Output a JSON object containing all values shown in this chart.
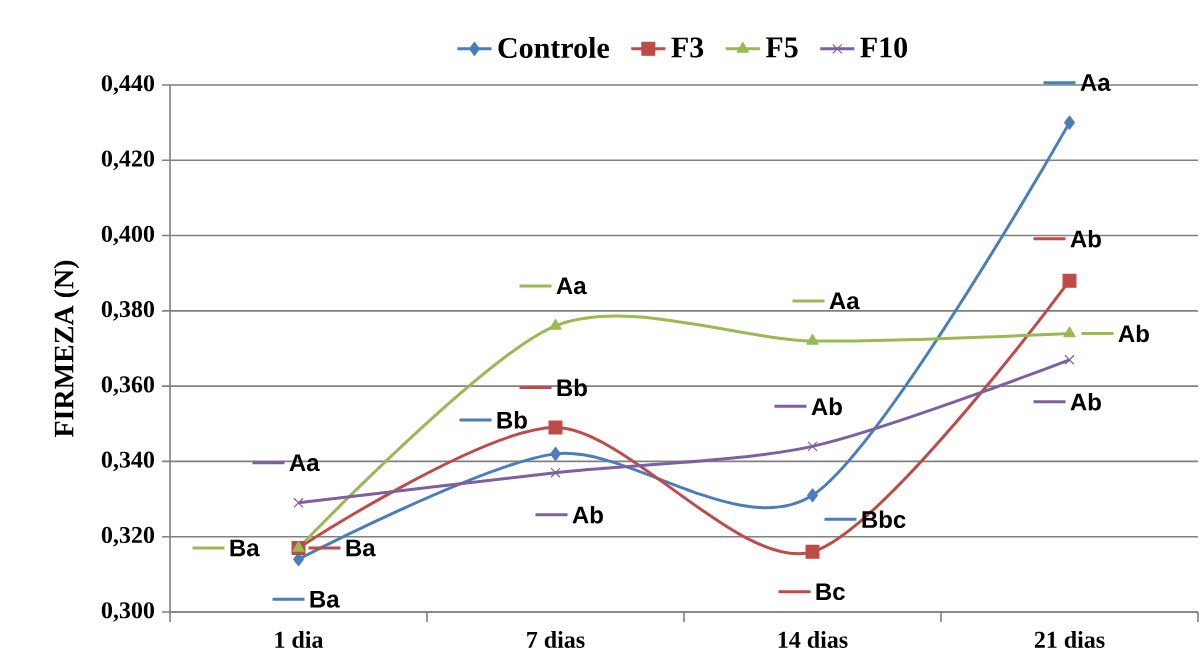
{
  "chart_data": {
    "type": "line",
    "ylabel": "FIRMEZA (N)",
    "categories": [
      "1 dia",
      "7 dias",
      "14 dias",
      "21 dias"
    ],
    "series": [
      {
        "name": "Controle",
        "color": "#4a7ebb",
        "marker": "diamond",
        "values": [
          0.314,
          0.342,
          0.331,
          0.43
        ],
        "value_labels": [
          "Ba",
          "Bb",
          "Bbc",
          "Aa"
        ]
      },
      {
        "name": "F3",
        "color": "#be4b48",
        "marker": "square",
        "values": [
          0.317,
          0.349,
          0.316,
          0.388
        ],
        "value_labels": [
          "Ba",
          "Bb",
          "Bc",
          "Ab"
        ]
      },
      {
        "name": "F5",
        "color": "#98b954",
        "marker": "triangle",
        "values": [
          0.317,
          0.376,
          0.372,
          0.374
        ],
        "value_labels": [
          "Ba",
          "Aa",
          "Aa",
          "Ab"
        ]
      },
      {
        "name": "F10",
        "color": "#7d60a0",
        "marker": "cross",
        "values": [
          0.329,
          0.337,
          0.344,
          0.367
        ],
        "value_labels": [
          "Aa",
          "Ab",
          "Ab",
          "Ab"
        ]
      }
    ],
    "ylim": [
      0.3,
      0.44
    ],
    "yticks": [
      {
        "value": 0.3,
        "label": "0,300"
      },
      {
        "value": 0.32,
        "label": "0,320"
      },
      {
        "value": 0.34,
        "label": "0,340"
      },
      {
        "value": 0.36,
        "label": "0,360"
      },
      {
        "value": 0.38,
        "label": "0,380"
      },
      {
        "value": 0.4,
        "label": "0,400"
      },
      {
        "value": 0.42,
        "label": "0,420"
      },
      {
        "value": 0.44,
        "label": "0,440"
      }
    ],
    "grid": "y",
    "legend": "top",
    "line_style": "solid"
  }
}
